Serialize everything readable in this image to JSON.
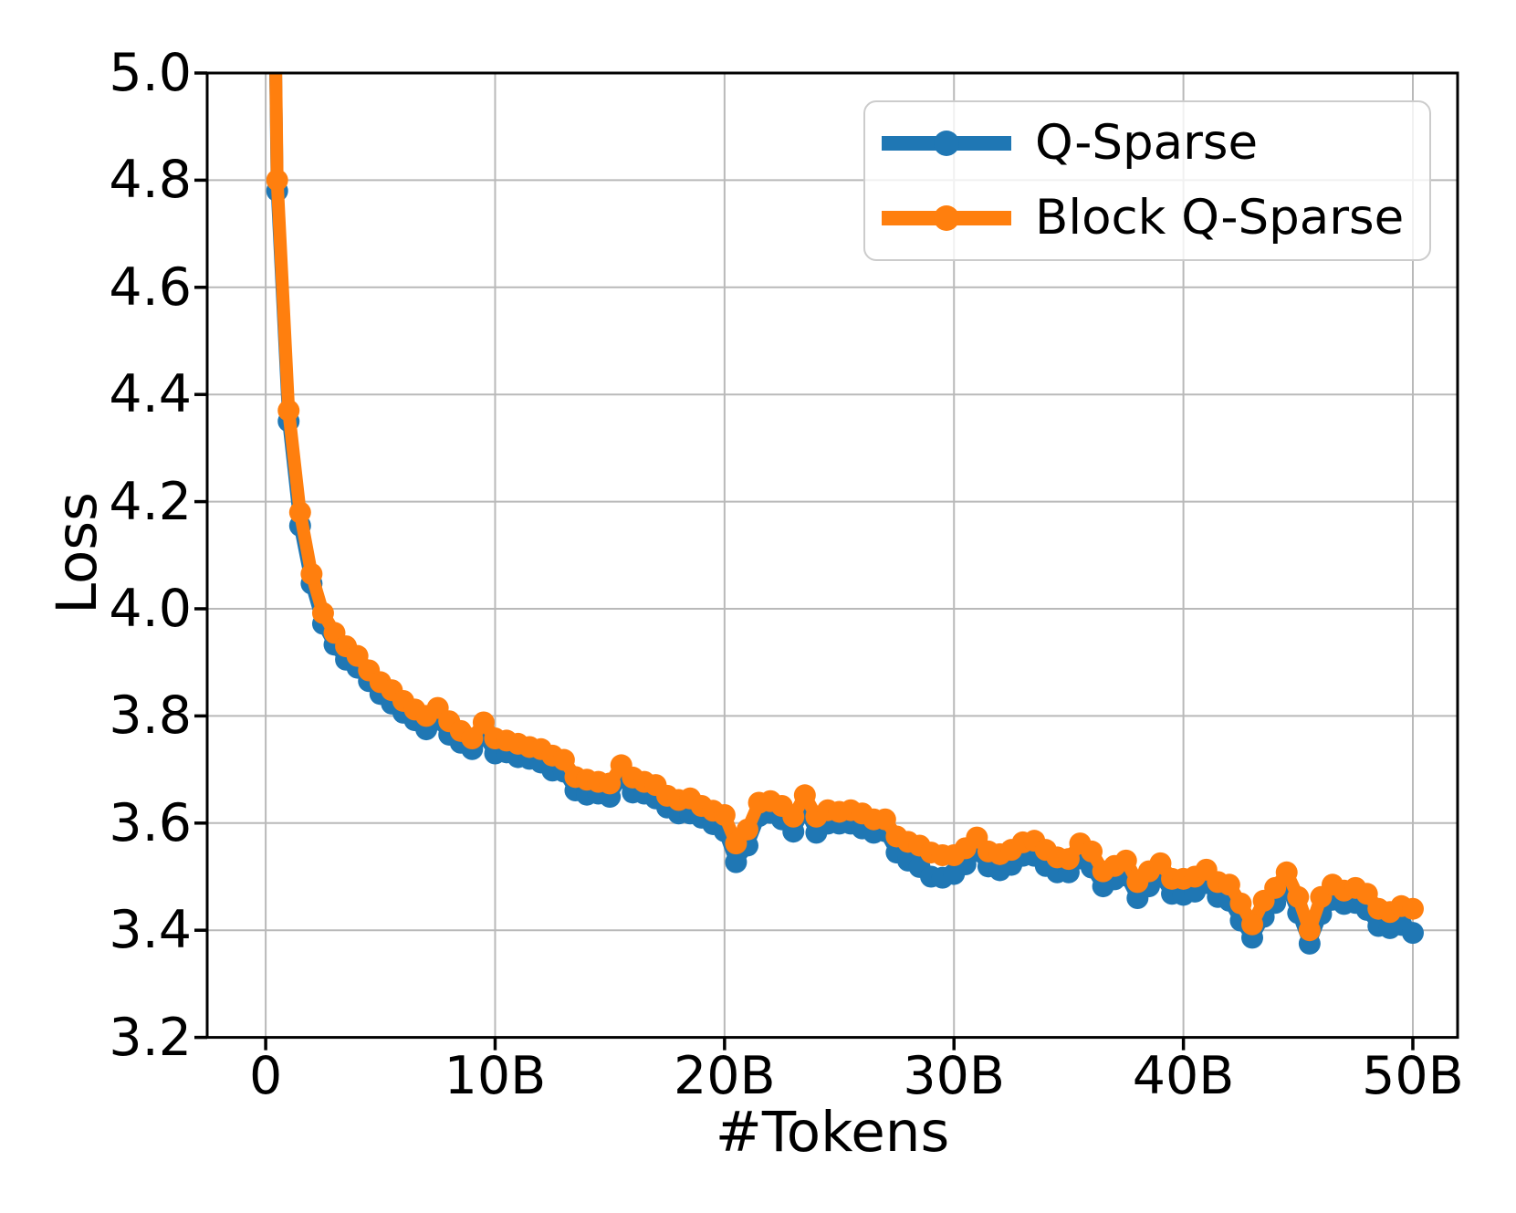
{
  "chart_data": {
    "type": "line",
    "title": "",
    "xlabel": "#Tokens",
    "ylabel": "Loss",
    "xlim": [
      -2.55,
      51.95
    ],
    "ylim": [
      3.2,
      5.0
    ],
    "grid": true,
    "grid_color": "#b9b9b9",
    "spine_color": "#000000",
    "background_color": "#ffffff",
    "legend": {
      "location": "upper right",
      "border_color": "#cccccc"
    },
    "xticks": {
      "values": [
        0,
        10,
        20,
        30,
        40,
        50
      ],
      "labels": [
        "0",
        "10B",
        "20B",
        "30B",
        "40B",
        "50B"
      ]
    },
    "yticks": {
      "values": [
        3.2,
        3.4,
        3.6,
        3.8,
        4.0,
        4.2,
        4.4,
        4.6,
        4.8,
        5.0
      ],
      "labels": [
        "3.2",
        "3.4",
        "3.6",
        "3.8",
        "4.0",
        "4.2",
        "4.4",
        "4.6",
        "4.8",
        "5.0"
      ]
    },
    "x": [
      0,
      0.5,
      1,
      1.5,
      2,
      2.5,
      3,
      3.5,
      4,
      4.5,
      5,
      5.5,
      6,
      6.5,
      7,
      7.5,
      8,
      8.5,
      9,
      9.5,
      10,
      10.5,
      11,
      11.5,
      12,
      12.5,
      13,
      13.5,
      14,
      14.5,
      15,
      15.5,
      16,
      16.5,
      17,
      17.5,
      18,
      18.5,
      19,
      19.5,
      20,
      20.5,
      21,
      21.5,
      22,
      22.5,
      23,
      23.5,
      24,
      24.5,
      25,
      25.5,
      26,
      26.5,
      27,
      27.5,
      28,
      28.5,
      29,
      29.5,
      30,
      30.5,
      31,
      31.5,
      32,
      32.5,
      33,
      33.5,
      34,
      34.5,
      35,
      35.5,
      36,
      36.5,
      37,
      37.5,
      38,
      38.5,
      39,
      39.5,
      40,
      40.5,
      41,
      41.5,
      42,
      42.5,
      43,
      43.5,
      44,
      44.5,
      45,
      45.5,
      46,
      46.5,
      47,
      47.5,
      48,
      48.5,
      49,
      49.5,
      50
    ],
    "x_unit": "billion tokens",
    "series": [
      {
        "name": "Q-Sparse",
        "color": "#1f77b4",
        "values": [
          6.48,
          4.78,
          4.35,
          4.155,
          4.047,
          3.972,
          3.933,
          3.905,
          3.89,
          3.865,
          3.841,
          3.823,
          3.806,
          3.792,
          3.775,
          3.793,
          3.765,
          3.75,
          3.738,
          3.763,
          3.73,
          3.732,
          3.723,
          3.72,
          3.713,
          3.698,
          3.696,
          3.661,
          3.653,
          3.655,
          3.649,
          3.686,
          3.657,
          3.655,
          3.646,
          3.629,
          3.618,
          3.618,
          3.61,
          3.598,
          3.585,
          3.527,
          3.558,
          3.613,
          3.619,
          3.607,
          3.584,
          3.627,
          3.582,
          3.599,
          3.599,
          3.599,
          3.59,
          3.582,
          3.585,
          3.545,
          3.53,
          3.518,
          3.5,
          3.498,
          3.505,
          3.523,
          3.548,
          3.519,
          3.512,
          3.522,
          3.539,
          3.539,
          3.52,
          3.508,
          3.508,
          3.534,
          3.517,
          3.482,
          3.495,
          3.502,
          3.46,
          3.482,
          3.5,
          3.468,
          3.466,
          3.472,
          3.488,
          3.462,
          3.455,
          3.418,
          3.386,
          3.425,
          3.451,
          3.483,
          3.432,
          3.375,
          3.43,
          3.457,
          3.449,
          3.451,
          3.438,
          3.408,
          3.404,
          3.41,
          3.395
        ]
      },
      {
        "name": "Block Q-Sparse",
        "color": "#ff7f0e",
        "values": [
          6.5,
          4.8,
          4.37,
          4.18,
          4.065,
          3.992,
          3.955,
          3.93,
          3.912,
          3.885,
          3.863,
          3.848,
          3.828,
          3.812,
          3.8,
          3.815,
          3.79,
          3.772,
          3.758,
          3.788,
          3.758,
          3.754,
          3.748,
          3.742,
          3.738,
          3.726,
          3.718,
          3.686,
          3.681,
          3.677,
          3.674,
          3.708,
          3.685,
          3.677,
          3.671,
          3.651,
          3.643,
          3.646,
          3.632,
          3.623,
          3.615,
          3.562,
          3.588,
          3.638,
          3.641,
          3.632,
          3.612,
          3.652,
          3.612,
          3.624,
          3.621,
          3.624,
          3.618,
          3.607,
          3.607,
          3.575,
          3.565,
          3.558,
          3.545,
          3.54,
          3.54,
          3.553,
          3.573,
          3.547,
          3.542,
          3.55,
          3.564,
          3.567,
          3.55,
          3.536,
          3.533,
          3.562,
          3.547,
          3.51,
          3.52,
          3.53,
          3.49,
          3.51,
          3.525,
          3.496,
          3.496,
          3.5,
          3.513,
          3.49,
          3.485,
          3.45,
          3.411,
          3.455,
          3.479,
          3.508,
          3.462,
          3.4,
          3.462,
          3.485,
          3.474,
          3.479,
          3.468,
          3.44,
          3.434,
          3.445,
          3.44
        ]
      }
    ]
  }
}
